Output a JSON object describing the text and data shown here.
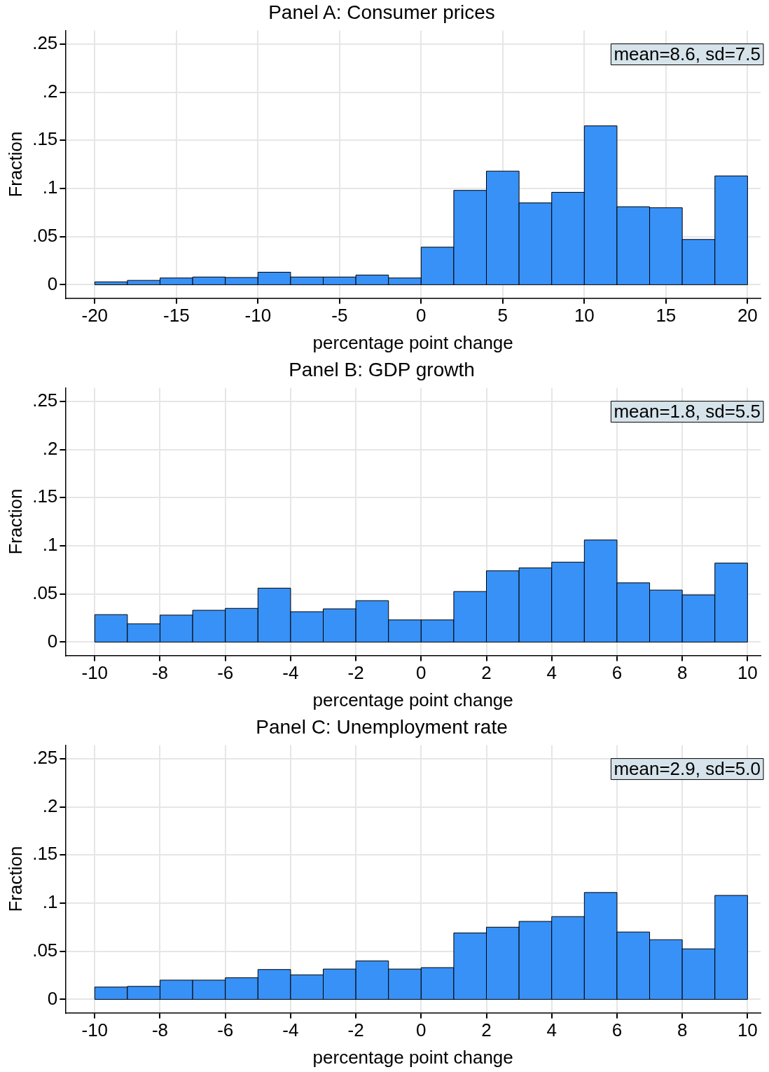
{
  "chart_data": [
    {
      "type": "histogram",
      "title": "Panel A: Consumer prices",
      "xlabel": "percentage point change",
      "ylabel": "Fraction",
      "color": "#3891f7",
      "grid": true,
      "bins": [
        -20,
        -18,
        -16,
        -14,
        -12,
        -10,
        -8,
        -6,
        -4,
        -2,
        0,
        2,
        4,
        6,
        8,
        10,
        12,
        14,
        16,
        18,
        20
      ],
      "values": [
        0.003,
        0.0045,
        0.007,
        0.008,
        0.0075,
        0.013,
        0.008,
        0.008,
        0.01,
        0.007,
        0.039,
        0.098,
        0.118,
        0.085,
        0.096,
        0.165,
        0.081,
        0.08,
        0.047,
        0.113
      ],
      "xlim": [
        -21.8,
        20.8
      ],
      "xticks": [
        -20,
        -15,
        -10,
        -5,
        0,
        5,
        10,
        15,
        20
      ],
      "ylim": [
        -0.014,
        0.264
      ],
      "yticks": [
        {
          "value": 0,
          "label": "0"
        },
        {
          "value": 0.05,
          "label": ".05"
        },
        {
          "value": 0.1,
          "label": ".1"
        },
        {
          "value": 0.15,
          "label": ".15"
        },
        {
          "value": 0.2,
          "label": ".2"
        },
        {
          "value": 0.25,
          "label": ".25"
        }
      ],
      "annotations": [
        "mean=8.6, sd=7.5"
      ]
    },
    {
      "type": "histogram",
      "title": "Panel B: GDP growth",
      "xlabel": "percentage point change",
      "ylabel": "Fraction",
      "color": "#3891f7",
      "grid": true,
      "bins": [
        -10,
        -9,
        -8,
        -7,
        -6,
        -5,
        -4,
        -3,
        -2,
        -1,
        0,
        1,
        2,
        3,
        4,
        5,
        6,
        7,
        8,
        9,
        10
      ],
      "values": [
        0.0285,
        0.019,
        0.028,
        0.033,
        0.035,
        0.056,
        0.0315,
        0.0345,
        0.043,
        0.023,
        0.023,
        0.0525,
        0.074,
        0.077,
        0.083,
        0.106,
        0.0615,
        0.054,
        0.049,
        0.082
      ],
      "xlim": [
        -10.9,
        10.4
      ],
      "xticks": [
        -10,
        -8,
        -6,
        -4,
        -2,
        0,
        2,
        4,
        6,
        8,
        10
      ],
      "ylim": [
        -0.014,
        0.264
      ],
      "yticks": [
        {
          "value": 0,
          "label": "0"
        },
        {
          "value": 0.05,
          "label": ".05"
        },
        {
          "value": 0.1,
          "label": ".1"
        },
        {
          "value": 0.15,
          "label": ".15"
        },
        {
          "value": 0.2,
          "label": ".2"
        },
        {
          "value": 0.25,
          "label": ".25"
        }
      ],
      "annotations": [
        "mean=1.8, sd=5.5"
      ]
    },
    {
      "type": "histogram",
      "title": "Panel C: Unemployment rate",
      "xlabel": "percentage point change",
      "ylabel": "Fraction",
      "color": "#3891f7",
      "grid": true,
      "bins": [
        -10,
        -9,
        -8,
        -7,
        -6,
        -5,
        -4,
        -3,
        -2,
        -1,
        0,
        1,
        2,
        3,
        4,
        5,
        6,
        7,
        8,
        9,
        10
      ],
      "values": [
        0.0128,
        0.0135,
        0.02,
        0.02,
        0.0225,
        0.031,
        0.0255,
        0.0315,
        0.04,
        0.0315,
        0.033,
        0.069,
        0.075,
        0.081,
        0.086,
        0.111,
        0.07,
        0.062,
        0.0525,
        0.108
      ],
      "xlim": [
        -10.9,
        10.4
      ],
      "xticks": [
        -10,
        -8,
        -6,
        -4,
        -2,
        0,
        2,
        4,
        6,
        8,
        10
      ],
      "ylim": [
        -0.014,
        0.264
      ],
      "yticks": [
        {
          "value": 0,
          "label": "0"
        },
        {
          "value": 0.05,
          "label": ".05"
        },
        {
          "value": 0.1,
          "label": ".1"
        },
        {
          "value": 0.15,
          "label": ".15"
        },
        {
          "value": 0.2,
          "label": ".2"
        },
        {
          "value": 0.25,
          "label": ".25"
        }
      ],
      "annotations": [
        "mean=2.9, sd=5.0"
      ]
    }
  ]
}
